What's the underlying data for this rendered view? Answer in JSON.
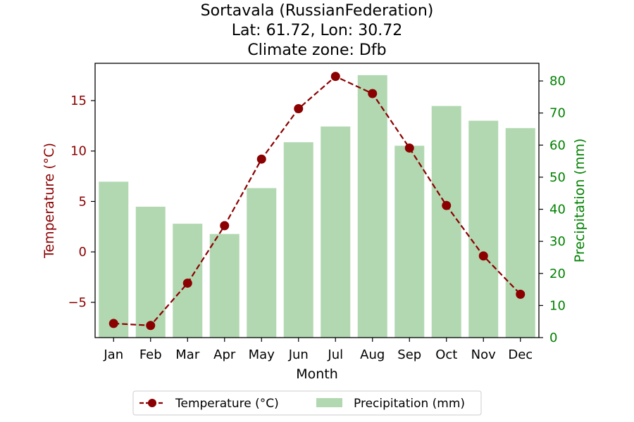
{
  "chart_data": {
    "type": "bar+line",
    "title_lines": [
      "Sortavala (RussianFederation)",
      "Lat: 61.72, Lon: 30.72",
      "Climate zone: Dfb"
    ],
    "xlabel": "Month",
    "ylabel_left": "Temperature (°C)",
    "ylabel_right": "Precipitation (mm)",
    "categories": [
      "Jan",
      "Feb",
      "Mar",
      "Apr",
      "May",
      "Jun",
      "Jul",
      "Aug",
      "Sep",
      "Oct",
      "Nov",
      "Dec"
    ],
    "temperature": {
      "name": "Temperature (°C)",
      "values": [
        -7.1,
        -7.3,
        -3.1,
        2.6,
        9.2,
        14.2,
        17.4,
        15.7,
        10.3,
        4.6,
        -0.4,
        -4.2
      ],
      "color": "#8b0000",
      "style": "dashed line with circle markers"
    },
    "precipitation": {
      "name": "Precipitation (mm)",
      "values": [
        48.6,
        40.8,
        35.5,
        32.3,
        46.6,
        60.9,
        65.8,
        81.8,
        59.8,
        72.2,
        67.6,
        65.3
      ],
      "color": "#b2d8b2"
    },
    "yticks_left": [
      -5,
      0,
      5,
      10,
      15
    ],
    "yticks_right": [
      0,
      10,
      20,
      30,
      40,
      50,
      60,
      70,
      80
    ],
    "ylim_left": [
      -8.5,
      18.7
    ],
    "ylim_right": [
      0,
      85.5
    ],
    "left_axis_color": "#8b0000",
    "right_axis_color": "#008000",
    "legend_placement": "bottom-center",
    "grid": false
  }
}
